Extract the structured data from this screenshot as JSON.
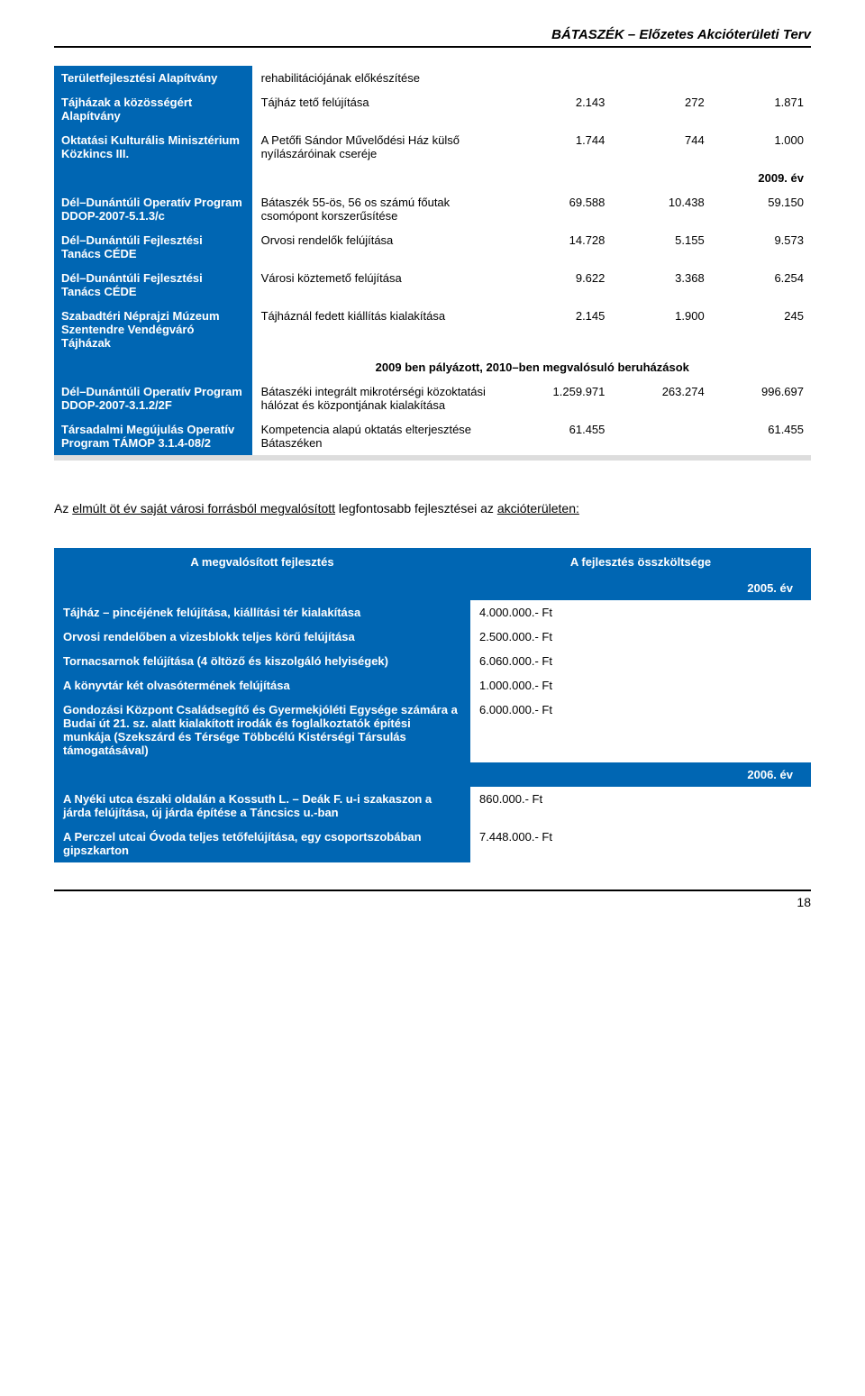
{
  "header": {
    "title": "BÁTASZÉK – Előzetes Akcióterületi Terv"
  },
  "table1": {
    "rows": [
      {
        "left": "Területfejlesztési Alapítvány",
        "desc": "rehabilitációjának előkészítése",
        "c1": "",
        "c2": "",
        "c3": ""
      },
      {
        "left": "Tájházak a közösségért Alapítvány",
        "desc": "Tájház tető felújítása",
        "c1": "2.143",
        "c2": "272",
        "c3": "1.871"
      },
      {
        "left": "Oktatási Kulturális Minisztérium Közkincs III.",
        "desc": "A Petőfi Sándor Művelődési Ház külső nyílászáróinak cseréje",
        "c1": "1.744",
        "c2": "744",
        "c3": "1.000"
      }
    ],
    "year1": "2009. év",
    "rows2": [
      {
        "left": "Dél–Dunántúli Operatív Program DDOP-2007-5.1.3/c",
        "desc": "Bátaszék 55-ös, 56 os számú főutak csomópont korszerűsítése",
        "c1": "69.588",
        "c2": "10.438",
        "c3": "59.150"
      },
      {
        "left": "Dél–Dunántúli Fejlesztési Tanács CÉDE",
        "desc": "Orvosi rendelők felújítása",
        "c1": "14.728",
        "c2": "5.155",
        "c3": "9.573"
      },
      {
        "left": "Dél–Dunántúli Fejlesztési Tanács CÉDE",
        "desc": "Városi köztemető felújítása",
        "c1": "9.622",
        "c2": "3.368",
        "c3": "6.254"
      },
      {
        "left": "Szabadtéri Néprajzi Múzeum Szentendre Vendégváró Tájházak",
        "desc": "Tájháznál fedett kiállítás kialakítása",
        "c1": "2.145",
        "c2": "1.900",
        "c3": "245"
      }
    ],
    "subhead": "2009 ben pályázott, 2010–ben megvalósuló beruházások",
    "rows3": [
      {
        "left": "Dél–Dunántúli Operatív Program DDOP-2007-3.1.2/2F",
        "desc": "Bátaszéki integrált mikrotérségi közoktatási hálózat és központjának kialakítása",
        "c1": "1.259.971",
        "c2": "263.274",
        "c3": "996.697"
      },
      {
        "left": "Társadalmi Megújulás Operatív Program TÁMOP 3.1.4-08/2",
        "desc": "Kompetencia alapú oktatás elterjesztése Bátaszéken",
        "c1": "61.455",
        "c2": "",
        "c3": "61.455"
      }
    ]
  },
  "paragraph": {
    "text1": "Az ",
    "underlined": "elmúlt öt év saját városi forrásból megvalósított",
    "text2": " legfontosabb fejlesztései az ",
    "u2": "akcióterületen:"
  },
  "table2": {
    "header": {
      "left": "A megvalósított fejlesztés",
      "right": "A fejlesztés összköltsége"
    },
    "year1": "2005. év",
    "rows1": [
      {
        "left": "Tájház – pincéjének felújítása, kiállítási tér kialakítása",
        "right": "4.000.000.- Ft"
      },
      {
        "left": "Orvosi rendelőben a vizesblokk teljes körű felújítása",
        "right": "2.500.000.- Ft"
      },
      {
        "left": "Tornacsarnok felújítása (4 öltöző és kiszolgáló helyiségek)",
        "right": "6.060.000.- Ft"
      },
      {
        "left": "A könyvtár két olvasótermének felújítása",
        "right": "1.000.000.- Ft"
      },
      {
        "left": "Gondozási Központ Családsegítő és Gyermekjóléti Egysége számára a Budai út 21. sz. alatt kialakított irodák és foglalkoztatók építési munkája (Szekszárd és Térsége Többcélú Kistérségi Társulás támogatásával)",
        "right": "6.000.000.- Ft"
      }
    ],
    "year2": "2006. év",
    "rows2": [
      {
        "left": "A Nyéki utca északi oldalán a Kossuth L. – Deák F. u-i szakaszon a járda felújítása, új járda építése a Táncsics u.-ban",
        "right": "860.000.- Ft"
      },
      {
        "left": "A Perczel utcai Óvoda teljes tetőfelújítása, egy csoportszobában gipszkarton",
        "right": "7.448.000.- Ft"
      }
    ]
  },
  "footer": {
    "page": "18"
  },
  "colors": {
    "blue": "#0066b3",
    "grey": "#dddddd"
  }
}
